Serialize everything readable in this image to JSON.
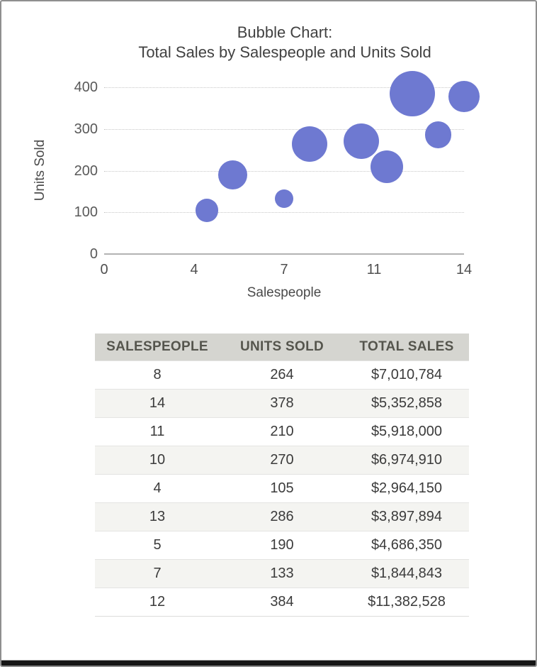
{
  "chart_data": {
    "type": "bubble",
    "title": "Bubble Chart: Total Sales by Salespeople and Units Sold",
    "title_lines": [
      "Bubble Chart:",
      "Total Sales by Salespeople and Units Sold"
    ],
    "x_axis": {
      "label": "Salespeople",
      "range": [
        0,
        14
      ],
      "tick_labels": [
        "0",
        "4",
        "7",
        "11",
        "14"
      ],
      "tick_positions": [
        0,
        3.5,
        7,
        10.5,
        14
      ]
    },
    "y_axis": {
      "label": "Units Sold",
      "range": [
        0,
        400
      ],
      "tick_labels": [
        "0",
        "100",
        "200",
        "300",
        "400"
      ],
      "tick_values": [
        0,
        100,
        200,
        300,
        400
      ]
    },
    "size_legend": "bubble area proportional to total sales",
    "grid": "dotted horizontal lines at y ticks",
    "points": [
      {
        "salespeople": 8,
        "units_sold": 264,
        "total_sales": 7010784,
        "total_sales_label": "$7,010,784"
      },
      {
        "salespeople": 14,
        "units_sold": 378,
        "total_sales": 5352858,
        "total_sales_label": "$5,352,858"
      },
      {
        "salespeople": 11,
        "units_sold": 210,
        "total_sales": 5918000,
        "total_sales_label": "$5,918,000"
      },
      {
        "salespeople": 10,
        "units_sold": 270,
        "total_sales": 6974910,
        "total_sales_label": "$6,974,910"
      },
      {
        "salespeople": 4,
        "units_sold": 105,
        "total_sales": 2964150,
        "total_sales_label": "$2,964,150"
      },
      {
        "salespeople": 13,
        "units_sold": 286,
        "total_sales": 3897894,
        "total_sales_label": "$3,897,894"
      },
      {
        "salespeople": 5,
        "units_sold": 190,
        "total_sales": 4686350,
        "total_sales_label": "$4,686,350"
      },
      {
        "salespeople": 7,
        "units_sold": 133,
        "total_sales": 1844843,
        "total_sales_label": "$1,844,843"
      },
      {
        "salespeople": 12,
        "units_sold": 384,
        "total_sales": 11382528,
        "total_sales_label": "$11,382,528"
      }
    ]
  },
  "table": {
    "headers": [
      "SALESPEOPLE",
      "UNITS SOLD",
      "TOTAL SALES"
    ],
    "rows": [
      [
        "8",
        "264",
        "$7,010,784"
      ],
      [
        "14",
        "378",
        "$5,352,858"
      ],
      [
        "11",
        "210",
        "$5,918,000"
      ],
      [
        "10",
        "270",
        "$6,974,910"
      ],
      [
        "4",
        "105",
        "$2,964,150"
      ],
      [
        "13",
        "286",
        "$3,897,894"
      ],
      [
        "5",
        "190",
        "$4,686,350"
      ],
      [
        "7",
        "133",
        "$1,844,843"
      ],
      [
        "12",
        "384",
        "$11,382,528"
      ]
    ]
  },
  "colors": {
    "bubble": "#6E79D1",
    "gridline": "#C7C7C7",
    "axis_line": "#B3B3B3",
    "title_text": "#414141",
    "tick_text": "#595959",
    "table_header_bg": "#D5D5D0",
    "table_header_text": "#55554D",
    "table_row_alt_bg": "#F4F4F1",
    "table_cell_text": "#3B3B3B",
    "frame_border": "#8F8F8F",
    "frame_bottom_bar": "#161616"
  }
}
